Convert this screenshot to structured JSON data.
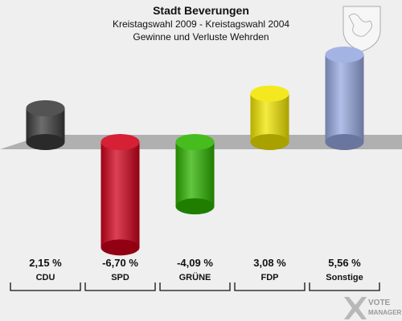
{
  "header": {
    "title": "Stadt Beverungen",
    "subtitle1": "Kreistagswahl 2009 - Kreistagswahl 2004",
    "subtitle2": "Gewinne und Verluste Wehrden"
  },
  "watermark": {
    "line1": "VOTE",
    "line2": "MANAGER"
  },
  "chart_data": {
    "type": "bar",
    "title": "Stadt Beverungen",
    "categories": [
      "CDU",
      "SPD",
      "GRÜNE",
      "FDP",
      "Sonstige"
    ],
    "values": [
      2.15,
      -6.7,
      -4.09,
      3.08,
      5.56
    ],
    "value_labels": [
      "2,15 %",
      "-6,70 %",
      "-4,09 %",
      "3,08 %",
      "5,56 %"
    ],
    "colors": [
      "#3c3c3c",
      "#d0021b",
      "#2db300",
      "#f2e600",
      "#97a9e0"
    ],
    "ylim": [
      -7,
      6
    ],
    "xlabel": "",
    "ylabel": "",
    "grid": false,
    "legend": "none"
  }
}
